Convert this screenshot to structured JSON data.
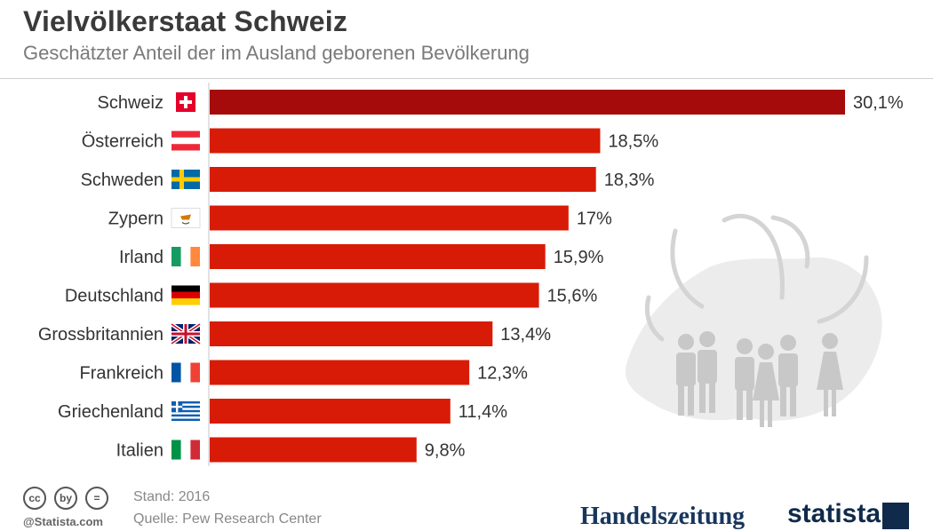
{
  "header": {
    "title": "Vielvölkerstaat Schweiz",
    "subtitle": "Geschätzter Anteil der im Ausland geborenen Bevölkerung"
  },
  "chart_data": {
    "type": "bar",
    "orientation": "horizontal",
    "title": "Vielvölkerstaat Schweiz",
    "subtitle": "Geschätzter Anteil der im Ausland geborenen Bevölkerung",
    "categories": [
      "Schweiz",
      "Österreich",
      "Schweden",
      "Zypern",
      "Irland",
      "Deutschland",
      "Grossbritannien",
      "Frankreich",
      "Griechenland",
      "Italien"
    ],
    "values": [
      30.1,
      18.5,
      18.3,
      17.0,
      15.9,
      15.6,
      13.4,
      12.3,
      11.4,
      9.8
    ],
    "value_labels": [
      "30,1%",
      "18,5%",
      "18,3%",
      "17%",
      "15,9%",
      "15,6%",
      "13,4%",
      "12,3%",
      "11,4%",
      "9,8%"
    ],
    "xlim": [
      0,
      30.1
    ],
    "unit": "%",
    "grid": false,
    "highlight_color": "#a50b0b",
    "bar_color": "#d81b06",
    "flags": [
      "switzerland-flag",
      "austria-flag",
      "sweden-flag",
      "cyprus-flag",
      "ireland-flag",
      "germany-flag",
      "uk-flag",
      "france-flag",
      "greece-flag",
      "italy-flag"
    ]
  },
  "footer": {
    "license_icons": [
      "cc",
      "by",
      "="
    ],
    "credit": "@Statista.com",
    "stand": "Stand: 2016",
    "source": "Quelle: Pew Research Center",
    "brand_1": "Handelszeitung",
    "brand_2": "statista"
  }
}
